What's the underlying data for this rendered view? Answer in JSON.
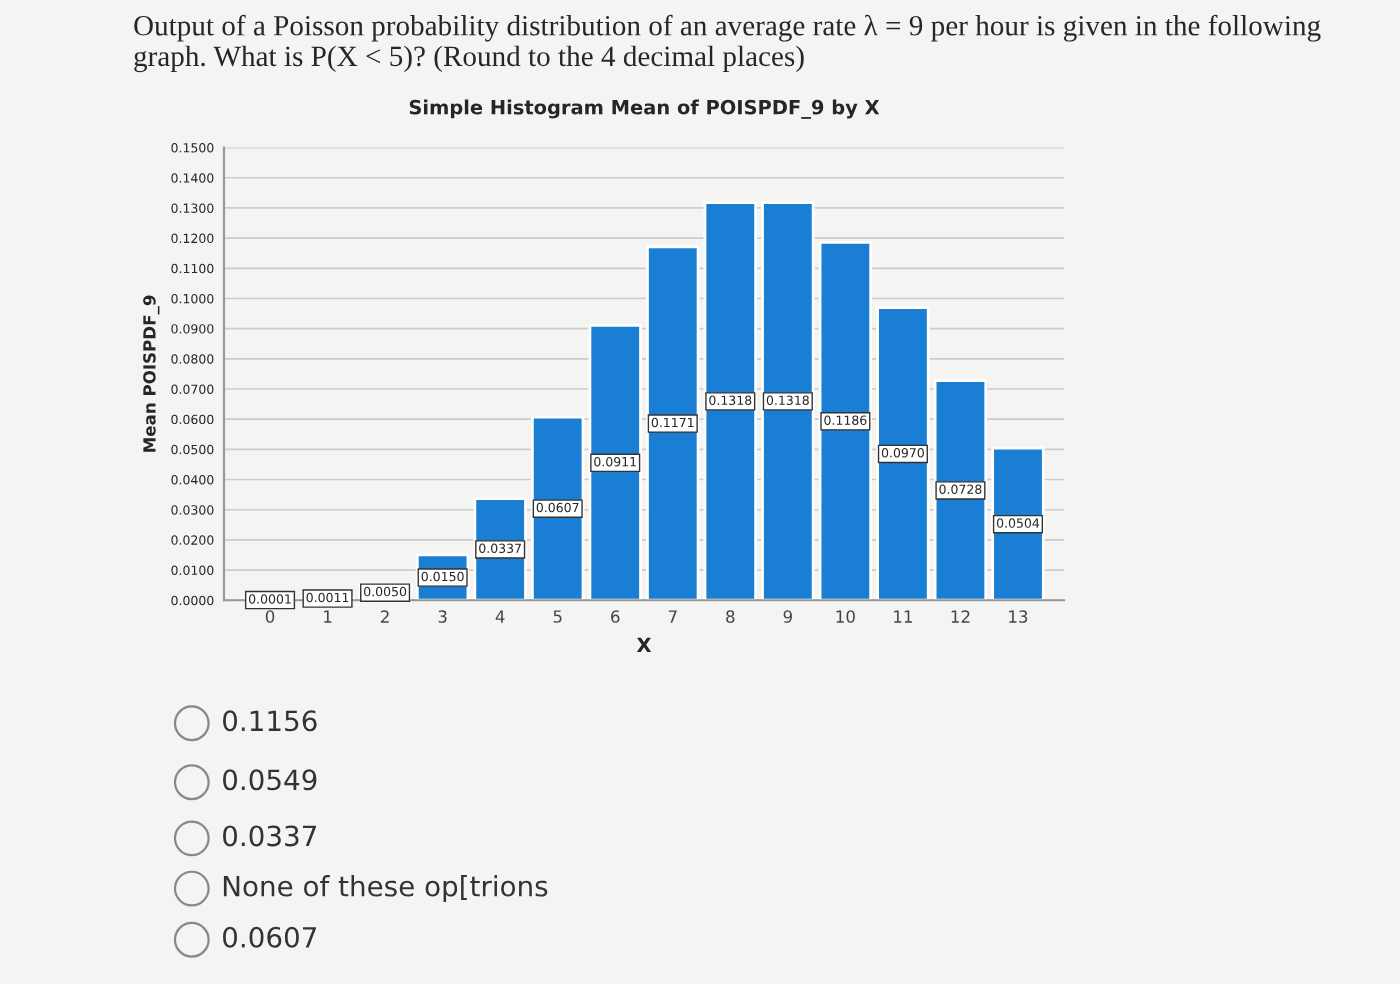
{
  "chart_data": {
    "type": "bar",
    "title": "Simple Histogram Mean of POISPDF_9 by X",
    "xlabel": "X",
    "ylabel": "Mean POISPDF_9",
    "categories": [
      "0",
      "1",
      "2",
      "3",
      "4",
      "5",
      "6",
      "7",
      "8",
      "9",
      "10",
      "11",
      "12",
      "13"
    ],
    "values": [
      0.0001,
      0.0011,
      0.005,
      0.015,
      0.0337,
      0.0607,
      0.0911,
      0.1171,
      0.1318,
      0.1318,
      0.1186,
      0.097,
      0.0728,
      0.0504
    ],
    "color": "#1a7fd4",
    "value_labels": [
      "0.0001",
      "0.0011",
      "0.0050",
      "0.0150",
      "0.0337",
      "0.0607",
      "0.0911",
      "0.1171",
      "0.1318",
      "0.1318",
      "0.1186",
      "0.0970",
      "0.0728",
      "0.0504"
    ],
    "ylim": [
      0,
      0.15
    ],
    "yticks": [
      {
        "value": 0,
        "label": "0.0000"
      },
      {
        "value": 0.01,
        "label": "0.0100"
      },
      {
        "value": 0.02,
        "label": "0.0200"
      },
      {
        "value": 0.03,
        "label": "0.0300"
      },
      {
        "value": 0.04,
        "label": "0.0400"
      },
      {
        "value": 0.05,
        "label": "0.0500"
      },
      {
        "value": 0.06,
        "label": "0.0600"
      },
      {
        "value": 0.07,
        "label": "0.0700"
      },
      {
        "value": 0.08,
        "label": "0.0800"
      },
      {
        "value": 0.09,
        "label": "0.0900"
      },
      {
        "value": 0.1,
        "label": "0.1000"
      },
      {
        "value": 0.11,
        "label": "0.1100"
      },
      {
        "value": 0.12,
        "label": "0.1200"
      },
      {
        "value": 0.13,
        "label": "0.1300"
      },
      {
        "value": 0.14,
        "label": "0.1400"
      },
      {
        "value": 0.15,
        "label": "0.1500"
      }
    ],
    "grid": "y",
    "annotations": [
      "Output of a Poisson probability distribution of an average rate λ = 9 per hour is given in the following graph. What is P(X < 5)? (Round to the 4 decimal places)",
      "0.1156",
      "0.0549",
      "0.0337",
      "None of these op[trions",
      "0.0607"
    ]
  }
}
